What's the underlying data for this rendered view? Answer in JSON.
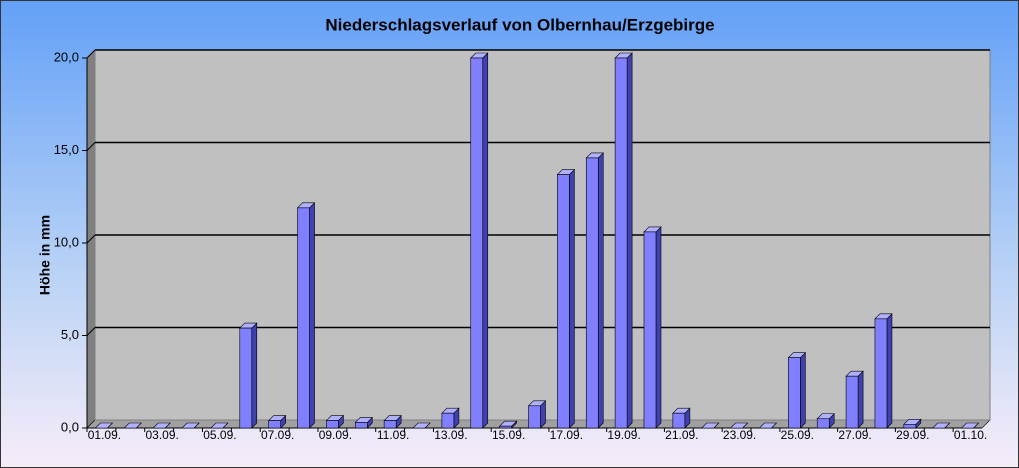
{
  "chart_data": {
    "type": "bar3d",
    "title": "Niederschlagsverlauf von Olbernhau/Erzgebirge",
    "y_label": "Höhe in  mm",
    "categories": [
      "01.09.",
      null,
      "03.09.",
      null,
      "05.09.",
      null,
      "07.09.",
      null,
      "09.09.",
      null,
      "11.09.",
      null,
      "13.09.",
      null,
      "15.09.",
      null,
      "17.09.",
      null,
      "19.09.",
      null,
      "21.09.",
      null,
      "23.09.",
      null,
      "25.09.",
      null,
      "27.09.",
      null,
      "29.09.",
      null,
      "01.10."
    ],
    "values": [
      0,
      0,
      0,
      0,
      0,
      5.4,
      0.4,
      11.9,
      0.4,
      0.3,
      0.4,
      0,
      0.8,
      20.0,
      0.1,
      1.2,
      13.7,
      14.6,
      20.0,
      10.6,
      0.8,
      0,
      0,
      0,
      3.8,
      0.5,
      2.8,
      5.9,
      0.2,
      0,
      0
    ],
    "color": "#8080ff",
    "ylim": [
      0,
      20
    ],
    "yticks": [
      {
        "value": 0,
        "label": "0,0"
      },
      {
        "value": 5,
        "label": "5,0"
      },
      {
        "value": 10,
        "label": "10,0"
      },
      {
        "value": 15,
        "label": "15,0"
      },
      {
        "value": 20,
        "label": "20,0"
      }
    ],
    "grid": true
  }
}
